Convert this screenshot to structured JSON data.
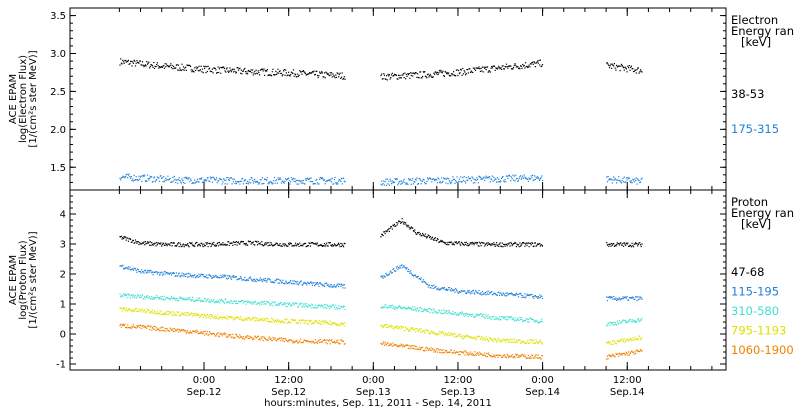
{
  "chart_data": [
    {
      "type": "scatter",
      "panel": "electron",
      "ylabel_lines": [
        "ACE EPAM",
        "log(Electron Flux)",
        "[1/(cm²s ster MeV)]"
      ],
      "legend_title": [
        "Electron",
        "Energy ran",
        "[keV]"
      ],
      "ylim": [
        1.2,
        3.6
      ],
      "yticks": [
        1.5,
        2.0,
        2.5,
        3.0,
        3.5
      ],
      "ytick_labels": [
        "1.5",
        "2.0",
        "2.5",
        "3.0",
        "3.5"
      ],
      "series": [
        {
          "name": "38-53",
          "color": "#000000",
          "segments": [
            {
              "x": [
                0,
                6,
                12,
                18,
                24,
                30,
                32
              ],
              "y": [
                2.9,
                2.84,
                2.8,
                2.77,
                2.75,
                2.72,
                2.71
              ]
            },
            {
              "x": [
                37,
                42,
                48,
                54,
                60
              ],
              "y": [
                2.7,
                2.72,
                2.76,
                2.82,
                2.88
              ]
            },
            {
              "x": [
                69,
                74
              ],
              "y": [
                2.85,
                2.78
              ]
            }
          ]
        },
        {
          "name": "175-315",
          "color": "#2080d8",
          "segments": [
            {
              "x": [
                0,
                8,
                16,
                24,
                32
              ],
              "y": [
                1.38,
                1.34,
                1.33,
                1.33,
                1.33
              ]
            },
            {
              "x": [
                37,
                44,
                52,
                60
              ],
              "y": [
                1.31,
                1.33,
                1.35,
                1.37
              ]
            },
            {
              "x": [
                69,
                74
              ],
              "y": [
                1.35,
                1.32
              ]
            }
          ]
        }
      ]
    },
    {
      "type": "scatter",
      "panel": "proton",
      "ylabel_lines": [
        "ACE EPAM",
        "log(Proton Flux)",
        "[1/(cm²s ster MeV)]"
      ],
      "legend_title": [
        "Proton",
        "Energy ran",
        "[keV]"
      ],
      "ylim": [
        -1.2,
        4.8
      ],
      "yticks": [
        -1,
        0,
        1,
        2,
        3,
        4
      ],
      "ytick_labels": [
        "-1",
        "0",
        "1",
        "2",
        "3",
        "4"
      ],
      "series": [
        {
          "name": "47-68",
          "color": "#000000",
          "segments": [
            {
              "x": [
                0,
                3,
                6,
                12,
                18,
                24,
                32
              ],
              "y": [
                3.25,
                3.05,
                3.0,
                3.0,
                3.05,
                3.0,
                3.0
              ]
            },
            {
              "x": [
                37,
                40,
                42,
                46,
                52,
                58,
                60
              ],
              "y": [
                3.3,
                3.8,
                3.4,
                3.05,
                3.0,
                3.0,
                3.0
              ]
            },
            {
              "x": [
                69,
                74
              ],
              "y": [
                3.0,
                3.0
              ]
            }
          ]
        },
        {
          "name": "115-195",
          "color": "#2080d8",
          "segments": [
            {
              "x": [
                0,
                3,
                8,
                16,
                24,
                32
              ],
              "y": [
                2.3,
                2.1,
                2.0,
                1.9,
                1.75,
                1.6
              ]
            },
            {
              "x": [
                37,
                40,
                44,
                48,
                54,
                60
              ],
              "y": [
                1.9,
                2.3,
                1.6,
                1.45,
                1.35,
                1.25
              ]
            },
            {
              "x": [
                69,
                74
              ],
              "y": [
                1.2,
                1.2
              ]
            }
          ]
        },
        {
          "name": "310-580",
          "color": "#40e0d0",
          "segments": [
            {
              "x": [
                0,
                8,
                16,
                24,
                32
              ],
              "y": [
                1.3,
                1.2,
                1.1,
                1.0,
                0.9
              ]
            },
            {
              "x": [
                37,
                42,
                48,
                54,
                60
              ],
              "y": [
                0.95,
                0.85,
                0.7,
                0.55,
                0.45
              ]
            },
            {
              "x": [
                69,
                74
              ],
              "y": [
                0.35,
                0.5
              ]
            }
          ]
        },
        {
          "name": "795-1193",
          "color": "#e0e000",
          "segments": [
            {
              "x": [
                0,
                8,
                16,
                24,
                32
              ],
              "y": [
                0.85,
                0.7,
                0.55,
                0.45,
                0.35
              ]
            },
            {
              "x": [
                37,
                42,
                48,
                54,
                60
              ],
              "y": [
                0.3,
                0.15,
                -0.05,
                -0.2,
                -0.25
              ]
            },
            {
              "x": [
                69,
                74
              ],
              "y": [
                -0.3,
                -0.1
              ]
            }
          ]
        },
        {
          "name": "1060-1900",
          "color": "#f08000",
          "segments": [
            {
              "x": [
                0,
                8,
                16,
                24,
                32
              ],
              "y": [
                0.3,
                0.15,
                -0.05,
                -0.2,
                -0.25
              ]
            },
            {
              "x": [
                37,
                42,
                48,
                54,
                60
              ],
              "y": [
                -0.3,
                -0.45,
                -0.6,
                -0.7,
                -0.75
              ]
            },
            {
              "x": [
                69,
                74
              ],
              "y": [
                -0.75,
                -0.55
              ]
            }
          ]
        }
      ]
    }
  ],
  "x_axis": {
    "xlim": [
      -7,
      86
    ],
    "ticks": [
      {
        "x": 12,
        "lines": [
          "0:00",
          "Sep.12"
        ]
      },
      {
        "x": 24,
        "lines": [
          "12:00",
          "Sep.12"
        ]
      },
      {
        "x": 36,
        "lines": [
          "0:00",
          "Sep.13"
        ]
      },
      {
        "x": 48,
        "lines": [
          "12:00",
          "Sep.13"
        ]
      },
      {
        "x": 60,
        "lines": [
          "0:00",
          "Sep.14"
        ]
      },
      {
        "x": 72,
        "lines": [
          "12:00",
          "Sep.14"
        ]
      }
    ],
    "label": "hours:minutes, Sep. 11, 2011 - Sep. 14, 2011"
  }
}
